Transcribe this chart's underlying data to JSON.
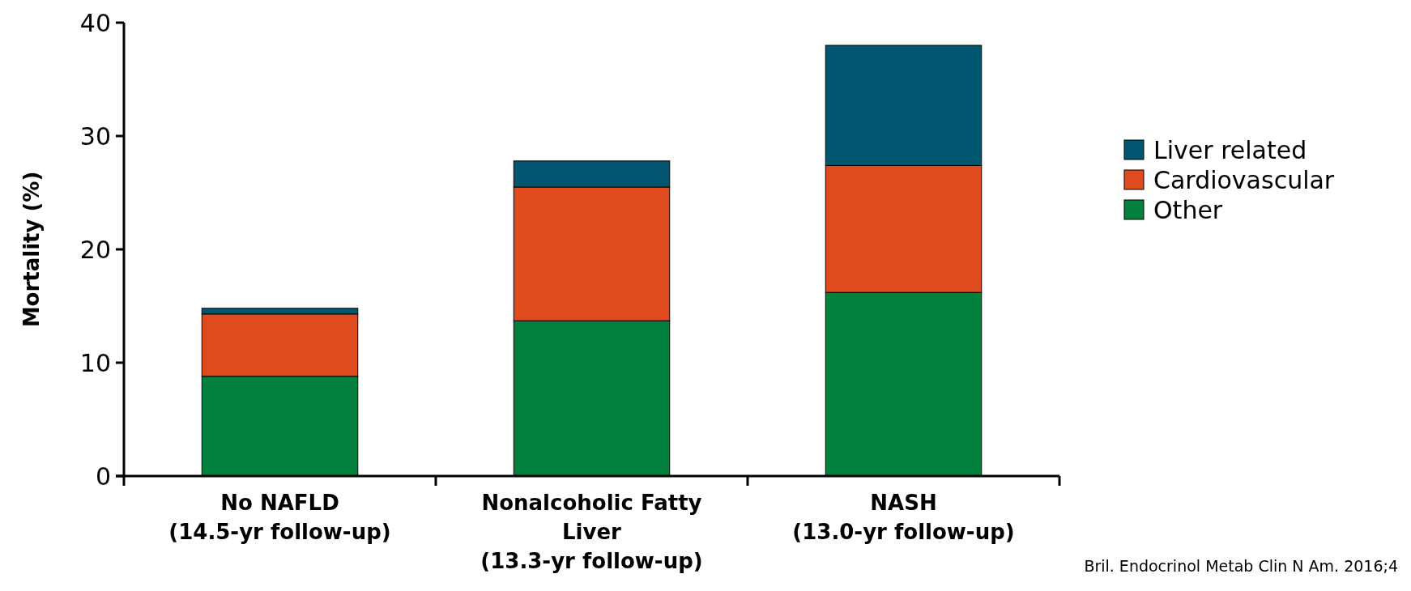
{
  "chart_data": {
    "type": "bar",
    "stacked": true,
    "ylabel": "Mortality (%)",
    "categories": [
      "No NAFLD\n(14.5-yr follow-up)",
      "Nonalcoholic Fatty\nLiver\n(13.3-yr follow-up)",
      "NASH\n(13.0-yr follow-up)"
    ],
    "series": [
      {
        "name": "Other",
        "color": "#03803e",
        "values": [
          8.8,
          13.7,
          16.2
        ]
      },
      {
        "name": "Cardiovascular",
        "color": "#e04a1f",
        "values": [
          5.5,
          11.8,
          11.2
        ]
      },
      {
        "name": "Liver related",
        "color": "#03566f",
        "values": [
          0.5,
          2.3,
          10.6
        ]
      }
    ],
    "ylim": [
      0,
      40
    ],
    "yticks": [
      0,
      10,
      20,
      30,
      40
    ],
    "legend": "right",
    "annotations": [
      "Bril. Endocrinol Metab Clin N Am. 2016;4"
    ]
  }
}
